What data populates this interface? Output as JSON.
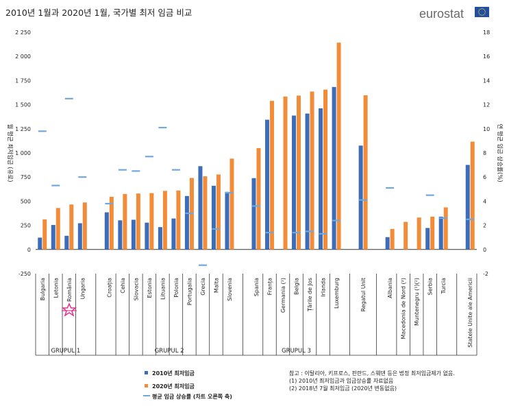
{
  "header": {
    "title": "2010년 1월과 2020년 1월, 국가별 최저 임금 비교",
    "brand": "eurostat"
  },
  "chart_data": {
    "type": "bar",
    "title": "2010년 1월과 2020년 1월, 국가별 최저 임금 비교",
    "ylabel": "월 평균 최저임금 (유로)",
    "y2label": "연 평균 임금 상승률(%)",
    "ylim": [
      -250,
      2250
    ],
    "y2lim": [
      -2,
      18
    ],
    "yticks": [
      "-250",
      "0",
      "250",
      "500",
      "750",
      "1 000",
      "1 250",
      "1 500",
      "1 750",
      "2 000",
      "2 250"
    ],
    "y2ticks": [
      "-2",
      "0",
      "2",
      "4",
      "6",
      "8",
      "10",
      "12",
      "14",
      "16",
      "18"
    ],
    "categories": [
      "Bulgaria",
      "Letonia",
      "România",
      "Ungaria",
      "Croația",
      "Cehia",
      "Slovacia",
      "Estonia",
      "Lituania",
      "Polonia",
      "Portugalia",
      "Grecia",
      "Malta",
      "Slovenia",
      "Spania",
      "Franța",
      "Germania (¹)",
      "Belgia",
      "Țările de Jos",
      "Irlanda",
      "Luxemburg",
      "Regatul Unit",
      "Albania",
      "Macedonia de Nord (²)",
      "Muntenegru (¹)(²)",
      "Serbia",
      "Turcia",
      "Statele Unite ale Americii"
    ],
    "series": [
      {
        "name": "2010년 최저임금",
        "color": "#3d6cb9",
        "values": [
          123,
          254,
          142,
          272,
          385,
          302,
          308,
          278,
          232,
          321,
          554,
          863,
          660,
          597,
          739,
          1344,
          null,
          1387,
          1408,
          1462,
          1683,
          1076,
          128,
          null,
          null,
          223,
          340,
          876
        ]
      },
      {
        "name": "2020년 최저임금",
        "color": "#f28c38",
        "values": [
          312,
          430,
          466,
          487,
          546,
          575,
          580,
          584,
          607,
          611,
          741,
          758,
          777,
          941,
          1050,
          1539,
          1584,
          1594,
          1636,
          1656,
          2142,
          1597,
          213,
          286,
          331,
          340,
          436,
          1117
        ]
      },
      {
        "name": "평균 임금 상승률 (차트 오른쪽 축)",
        "color": "#6fa8dc",
        "values": [
          9.8,
          5.3,
          12.5,
          6.0,
          3.8,
          6.6,
          6.5,
          7.7,
          10.1,
          6.6,
          3.0,
          -1.3,
          1.7,
          4.7,
          3.6,
          1.4,
          null,
          1.4,
          1.5,
          1.3,
          2.4,
          4.1,
          5.1,
          null,
          null,
          4.5,
          2.6,
          2.5
        ]
      }
    ],
    "groups": [
      {
        "label": "GRUPUL 1",
        "start": 0,
        "end": 3
      },
      {
        "label": "GRUPUL 2",
        "start": 4,
        "end": 13
      },
      {
        "label": "GRUPUL 3",
        "start": 14,
        "end": 20
      }
    ],
    "gap_before": [
      4,
      14,
      21,
      22,
      27
    ],
    "legend_position": "bottom-left",
    "notes": [
      "참고 : 이탈리아, 키프로스, 핀란드, 스웨덴 등은 법정 최저임금제가 없음.",
      "(1) 2010년 최저임금과 임금상승률 자료없음",
      "(2) 2018년 7월 최저임금 (2020년 변동없음)"
    ],
    "grid": false
  }
}
